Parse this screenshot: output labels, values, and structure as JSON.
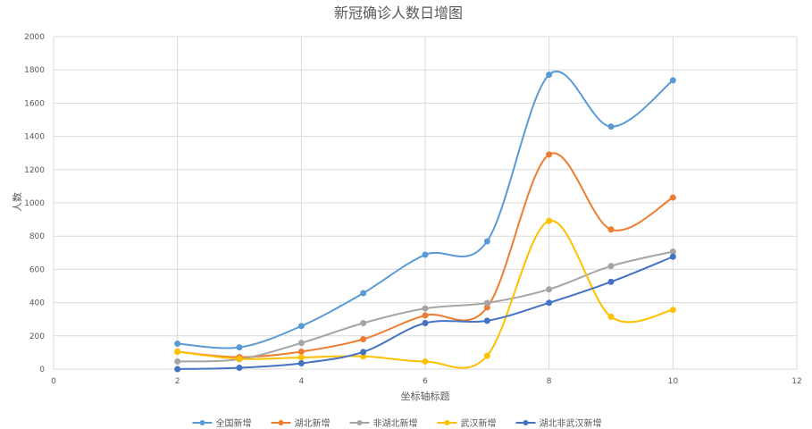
{
  "chart_data": {
    "type": "line",
    "title": "新冠确诊人数日增图",
    "xlabel": "坐标轴标题",
    "ylabel": "人数",
    "xlim": [
      0,
      12
    ],
    "ylim": [
      0,
      2000
    ],
    "x_ticks": [
      0,
      2,
      4,
      6,
      8,
      10,
      12
    ],
    "y_ticks": [
      0,
      200,
      400,
      600,
      800,
      1000,
      1200,
      1400,
      1600,
      1800,
      2000
    ],
    "grid": true,
    "smooth": true,
    "legend_position": "bottom",
    "x": [
      2,
      3,
      4,
      5,
      6,
      7,
      8,
      9,
      10
    ],
    "series": [
      {
        "name": "全国新增",
        "color": "#5B9BD5",
        "values": [
          153,
          131,
          259,
          457,
          688,
          769,
          1771,
          1459,
          1737
        ]
      },
      {
        "name": "湖北新增",
        "color": "#ED7D31",
        "values": [
          105,
          72,
          105,
          180,
          323,
          371,
          1291,
          840,
          1032
        ]
      },
      {
        "name": "非湖北新增",
        "color": "#A5A5A5",
        "values": [
          46,
          59,
          157,
          277,
          365,
          398,
          480,
          620,
          707
        ]
      },
      {
        "name": "武汉新增",
        "color": "#FFC000",
        "values": [
          105,
          62,
          70,
          77,
          46,
          80,
          892,
          315,
          356
        ]
      },
      {
        "name": "湖北非武汉新增",
        "color": "#4472C4",
        "values": [
          0,
          8,
          35,
          103,
          277,
          291,
          399,
          525,
          676
        ]
      }
    ]
  }
}
